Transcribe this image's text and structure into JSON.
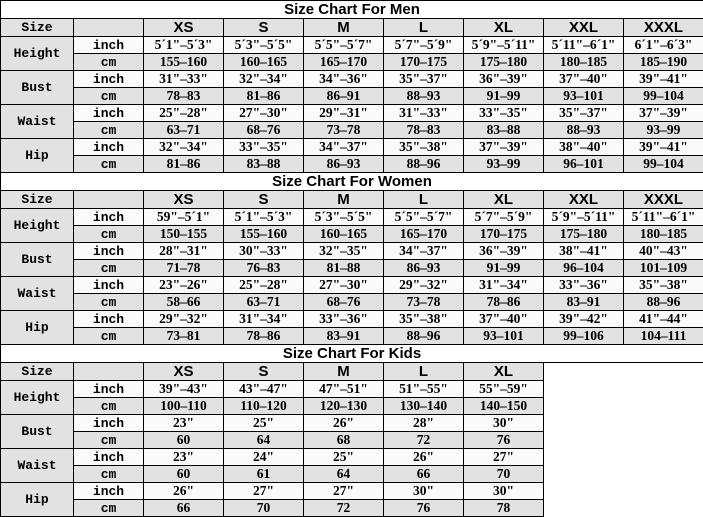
{
  "colors": {
    "border": "#000000",
    "row_shade": "#e2e2e2",
    "row_light": "#fafafa",
    "title_background": "#ffffff",
    "text": "#000000"
  },
  "chart_data": [
    {
      "type": "table",
      "key": "men",
      "title": "Size Chart For Men",
      "size_label": "Size",
      "unit_inch": "inch",
      "unit_cm": "cm",
      "columns": [
        "XS",
        "S",
        "M",
        "L",
        "XL",
        "XXL",
        "XXXL"
      ],
      "measures": [
        {
          "label": "Height",
          "inch": [
            "5´1\"–5´3\"",
            "5´3\"–5´5\"",
            "5´5\"–5´7\"",
            "5´7\"–5´9\"",
            "5´9\"–5´11\"",
            "5´11\"–6´1\"",
            "6´1\"–6´3\""
          ],
          "cm": [
            "155–160",
            "160–165",
            "165–170",
            "170–175",
            "175–180",
            "180–185",
            "185–190"
          ]
        },
        {
          "label": "Bust",
          "inch": [
            "31\"–33\"",
            "32\"–34\"",
            "34\"–36\"",
            "35\"–37\"",
            "36\"–39\"",
            "37\"–40\"",
            "39\"–41\""
          ],
          "cm": [
            "78–83",
            "81–86",
            "86–91",
            "88–93",
            "91–99",
            "93–101",
            "99–104"
          ]
        },
        {
          "label": "Waist",
          "inch": [
            "25\"–28\"",
            "27\"–30\"",
            "29\"–31\"",
            "31\"–33\"",
            "33\"–35\"",
            "35\"–37\"",
            "37\"–39\""
          ],
          "cm": [
            "63–71",
            "68–76",
            "73–78",
            "78–83",
            "83–88",
            "88–93",
            "93–99"
          ]
        },
        {
          "label": "Hip",
          "inch": [
            "32\"–34\"",
            "33\"–35\"",
            "34\"–37\"",
            "35\"–38\"",
            "37\"–39\"",
            "38\"–40\"",
            "39\"–41\""
          ],
          "cm": [
            "81–86",
            "83–88",
            "86–93",
            "88–96",
            "93–99",
            "96–101",
            "99–104"
          ]
        }
      ]
    },
    {
      "type": "table",
      "key": "women",
      "title": "Size Chart For Women",
      "size_label": "Size",
      "unit_inch": "inch",
      "unit_cm": "cm",
      "columns": [
        "XS",
        "S",
        "M",
        "L",
        "XL",
        "XXL",
        "XXXL"
      ],
      "measures": [
        {
          "label": "Height",
          "inch": [
            "59\"–5´1\"",
            "5´1\"–5´3\"",
            "5´3\"–5´5\"",
            "5´5\"–5´7\"",
            "5´7\"–5´9\"",
            "5´9\"–5´11\"",
            "5´11\"–6´1\""
          ],
          "cm": [
            "150–155",
            "155–160",
            "160–165",
            "165–170",
            "170–175",
            "175–180",
            "180–185"
          ]
        },
        {
          "label": "Bust",
          "inch": [
            "28\"–31\"",
            "30\"–33\"",
            "32\"–35\"",
            "34\"–37\"",
            "36\"–39\"",
            "38\"–41\"",
            "40\"–43\""
          ],
          "cm": [
            "71–78",
            "76–83",
            "81–88",
            "86–93",
            "91–99",
            "96–104",
            "101–109"
          ]
        },
        {
          "label": "Waist",
          "inch": [
            "23\"–26\"",
            "25\"–28\"",
            "27\"–30\"",
            "29\"–32\"",
            "31\"–34\"",
            "33\"–36\"",
            "35\"–38\""
          ],
          "cm": [
            "58–66",
            "63–71",
            "68–76",
            "73–78",
            "78–86",
            "83–91",
            "88–96"
          ]
        },
        {
          "label": "Hip",
          "inch": [
            "29\"–32\"",
            "31\"–34\"",
            "33\"–36\"",
            "35\"–38\"",
            "37\"–40\"",
            "39\"–42\"",
            "41\"–44\""
          ],
          "cm": [
            "73–81",
            "78–86",
            "83–91",
            "88–96",
            "93–101",
            "99–106",
            "104–111"
          ]
        }
      ]
    },
    {
      "type": "table",
      "key": "kids",
      "title": "Size Chart For Kids",
      "size_label": "Size",
      "unit_inch": "inch",
      "unit_cm": "cm",
      "columns": [
        "XS",
        "S",
        "M",
        "L",
        "XL"
      ],
      "measures": [
        {
          "label": "Height",
          "inch": [
            "39\"–43\"",
            "43\"–47\"",
            "47\"–51\"",
            "51\"–55\"",
            "55\"–59\""
          ],
          "cm": [
            "100–110",
            "110–120",
            "120–130",
            "130–140",
            "140–150"
          ]
        },
        {
          "label": "Bust",
          "inch": [
            "23\"",
            "25\"",
            "26\"",
            "28\"",
            "30\""
          ],
          "cm": [
            "60",
            "64",
            "68",
            "72",
            "76"
          ]
        },
        {
          "label": "Waist",
          "inch": [
            "23\"",
            "24\"",
            "25\"",
            "26\"",
            "27\""
          ],
          "cm": [
            "60",
            "61",
            "64",
            "66",
            "70"
          ]
        },
        {
          "label": "Hip",
          "inch": [
            "26\"",
            "27\"",
            "27\"",
            "30\"",
            "30\""
          ],
          "cm": [
            "66",
            "70",
            "72",
            "76",
            "78"
          ]
        }
      ]
    }
  ]
}
